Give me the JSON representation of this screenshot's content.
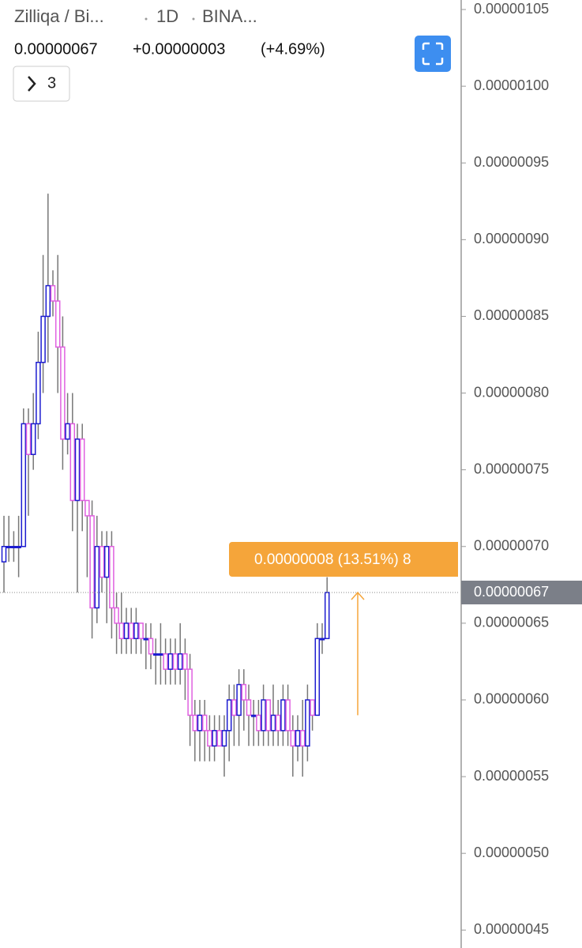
{
  "header": {
    "symbol": "Zilliqa / Bi...",
    "interval": "1D",
    "exchange": "BINA...",
    "price": "0.00000067",
    "change": "+0.00000003",
    "change_pct": "(+4.69%)",
    "indicators_button": "3"
  },
  "chart_data": {
    "type": "candlestick",
    "up_color": "#1c1cd0",
    "down_color": "#e060e0",
    "wick_color": "#777777",
    "open": [
      6.9e-07,
      7e-07,
      7e-07,
      7e-07,
      7e-07,
      7.8e-07,
      7.6e-07,
      7.8e-07,
      8.2e-07,
      8.5e-07,
      8.7e-07,
      8.6e-07,
      8.3e-07,
      7.7e-07,
      7.8e-07,
      7.3e-07,
      7.7e-07,
      7.3e-07,
      7.2e-07,
      6.6e-07,
      7e-07,
      6.8e-07,
      7e-07,
      6.6e-07,
      6.5e-07,
      6.4e-07,
      6.5e-07,
      6.4e-07,
      6.5e-07,
      6.4e-07,
      6.4e-07,
      6.3e-07,
      6.3e-07,
      6.3e-07,
      6.2e-07,
      6.3e-07,
      6.2e-07,
      6.3e-07,
      6.2e-07,
      5.9e-07,
      5.8e-07,
      5.9e-07,
      5.8e-07,
      5.7e-07,
      5.8e-07,
      5.7e-07,
      5.8e-07,
      6e-07,
      5.9e-07,
      6.1e-07,
      6e-07,
      5.9e-07,
      5.9e-07,
      5.8e-07,
      6e-07,
      5.8e-07,
      5.9e-07,
      5.8e-07,
      6e-07,
      5.8e-07,
      5.7e-07,
      5.8e-07,
      5.7e-07,
      6e-07,
      5.9e-07,
      6.4e-07,
      6.4e-07
    ],
    "high": [
      7.2e-07,
      7.2e-07,
      7.1e-07,
      7.2e-07,
      7.9e-07,
      7.9e-07,
      8e-07,
      8.4e-07,
      8.9e-07,
      9.3e-07,
      8.8e-07,
      8.9e-07,
      8.5e-07,
      8e-07,
      8e-07,
      7.8e-07,
      7.8e-07,
      7.3e-07,
      7.3e-07,
      7.2e-07,
      7.1e-07,
      7.1e-07,
      7.1e-07,
      6.7e-07,
      6.7e-07,
      6.6e-07,
      6.6e-07,
      6.6e-07,
      6.5e-07,
      6.5e-07,
      6.5e-07,
      6.4e-07,
      6.5e-07,
      6.4e-07,
      6.4e-07,
      6.4e-07,
      6.5e-07,
      6.4e-07,
      6.3e-07,
      6e-07,
      6e-07,
      6e-07,
      5.9e-07,
      5.9e-07,
      5.9e-07,
      5.9e-07,
      6.1e-07,
      6.1e-07,
      6.2e-07,
      6.2e-07,
      6.1e-07,
      6e-07,
      6e-07,
      6.1e-07,
      6e-07,
      6.1e-07,
      6e-07,
      6.1e-07,
      6.1e-07,
      5.9e-07,
      5.9e-07,
      6e-07,
      6.1e-07,
      6e-07,
      6.5e-07,
      6.5e-07,
      6.8e-07
    ],
    "low": [
      6.7e-07,
      6.9e-07,
      6.9e-07,
      6.8e-07,
      7e-07,
      7.2e-07,
      7.5e-07,
      7.7e-07,
      8e-07,
      8.2e-07,
      8.5e-07,
      8e-07,
      7.5e-07,
      7.6e-07,
      7.1e-07,
      6.7e-07,
      7.1e-07,
      6.8e-07,
      6.4e-07,
      6.5e-07,
      6.7e-07,
      6.5e-07,
      6.4e-07,
      6.3e-07,
      6.3e-07,
      6.3e-07,
      6.3e-07,
      6.3e-07,
      6.3e-07,
      6.2e-07,
      6.2e-07,
      6.1e-07,
      6.1e-07,
      6.1e-07,
      6.1e-07,
      6.1e-07,
      6.1e-07,
      6e-07,
      5.7e-07,
      5.6e-07,
      5.6e-07,
      5.6e-07,
      5.6e-07,
      5.6e-07,
      5.7e-07,
      5.5e-07,
      5.6e-07,
      5.7e-07,
      5.7e-07,
      5.8e-07,
      5.7e-07,
      5.7e-07,
      5.7e-07,
      5.7e-07,
      5.7e-07,
      5.7e-07,
      5.7e-07,
      5.7e-07,
      5.7e-07,
      5.5e-07,
      5.6e-07,
      5.5e-07,
      5.6e-07,
      5.8e-07,
      5.9e-07,
      6.3e-07,
      6.4e-07
    ],
    "close": [
      7e-07,
      7e-07,
      7e-07,
      7e-07,
      7.8e-07,
      7.6e-07,
      7.8e-07,
      8.2e-07,
      8.5e-07,
      8.7e-07,
      8.6e-07,
      8.3e-07,
      7.7e-07,
      7.8e-07,
      7.3e-07,
      7.7e-07,
      7.3e-07,
      7.2e-07,
      6.6e-07,
      7e-07,
      6.8e-07,
      7e-07,
      6.6e-07,
      6.5e-07,
      6.4e-07,
      6.5e-07,
      6.4e-07,
      6.5e-07,
      6.4e-07,
      6.4e-07,
      6.3e-07,
      6.3e-07,
      6.3e-07,
      6.2e-07,
      6.3e-07,
      6.2e-07,
      6.3e-07,
      6.2e-07,
      5.9e-07,
      5.8e-07,
      5.9e-07,
      5.8e-07,
      5.7e-07,
      5.8e-07,
      5.7e-07,
      5.8e-07,
      6e-07,
      5.9e-07,
      6.1e-07,
      6e-07,
      5.9e-07,
      5.9e-07,
      5.8e-07,
      6e-07,
      5.8e-07,
      5.9e-07,
      5.8e-07,
      6e-07,
      5.8e-07,
      5.7e-07,
      5.8e-07,
      5.7e-07,
      6e-07,
      5.9e-07,
      6.4e-07,
      6.4e-07,
      6.7e-07
    ],
    "ylim": [
      4.383e-07,
      1.0562e-06
    ],
    "yticks": [
      {
        "value": 1.05e-06,
        "label": "0.00000105"
      },
      {
        "value": 1e-06,
        "label": "0.00000100"
      },
      {
        "value": 9.5e-07,
        "label": "0.00000095"
      },
      {
        "value": 9e-07,
        "label": "0.00000090"
      },
      {
        "value": 8.5e-07,
        "label": "0.00000085"
      },
      {
        "value": 8e-07,
        "label": "0.00000080"
      },
      {
        "value": 7.5e-07,
        "label": "0.00000075"
      },
      {
        "value": 7e-07,
        "label": "0.00000070"
      },
      {
        "value": 6.5e-07,
        "label": "0.00000065"
      },
      {
        "value": 6e-07,
        "label": "0.00000060"
      },
      {
        "value": 5.5e-07,
        "label": "0.00000055"
      },
      {
        "value": 5e-07,
        "label": "0.00000050"
      },
      {
        "value": 4.5e-07,
        "label": "0.00000045"
      }
    ],
    "last_price": {
      "value": 6.7e-07,
      "label": "0.00000067"
    },
    "measure": {
      "from": 5.9e-07,
      "to": 6.7e-07,
      "label": "0.00000008 (13.51%) 8",
      "color": "#f5a53a"
    }
  }
}
